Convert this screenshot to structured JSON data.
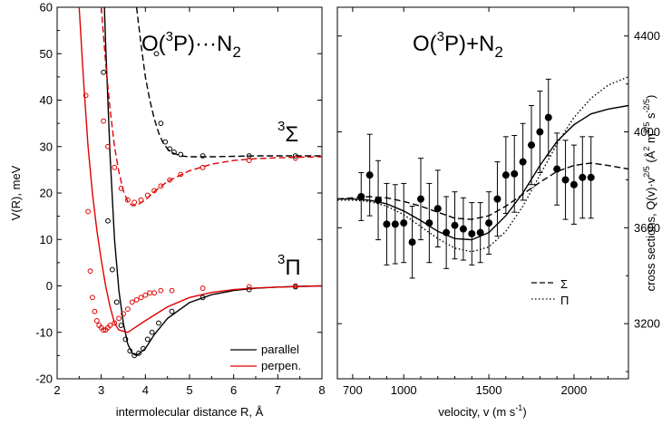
{
  "chart_data": [
    {
      "type": "line",
      "title": "O(3P)···N2",
      "title_parts": {
        "base": "O(",
        "sup": "3",
        "mid": "P)···N",
        "sub": "2"
      },
      "xlabel": "intermolecular distance R, Å",
      "ylabel": "V(R), meV",
      "xlim": [
        2,
        8
      ],
      "ylim": [
        -20,
        60
      ],
      "xticks": [
        "2",
        "3",
        "4",
        "5",
        "6",
        "7",
        "8"
      ],
      "yticks": [
        "-20",
        "-10",
        "0",
        "10",
        "20",
        "30",
        "40",
        "50",
        "60"
      ],
      "state_labels": [
        {
          "sup": "3",
          "symbol": "Σ"
        },
        {
          "sup": "3",
          "symbol": "Π"
        }
      ],
      "legend": {
        "position": "bottom-right",
        "entries": [
          "parallel",
          "perpen."
        ]
      },
      "colors": {
        "parallel": "#000000",
        "perpen": "#e00000"
      },
      "series": [
        {
          "name": "parallel",
          "state": "3Π",
          "style": "solid",
          "color": "#000000",
          "x": [
            3.0,
            3.1,
            3.2,
            3.3,
            3.4,
            3.5,
            3.6,
            3.7,
            3.8,
            4.0,
            4.2,
            4.5,
            5.0,
            5.5,
            6.0,
            6.5,
            7.0,
            7.5,
            8.0
          ],
          "y": [
            80,
            52,
            28,
            10,
            -1,
            -8,
            -12.5,
            -14.5,
            -15,
            -13.5,
            -10.5,
            -7,
            -3.6,
            -1.9,
            -1.0,
            -0.5,
            -0.25,
            -0.1,
            0
          ]
        },
        {
          "name": "perpen.",
          "state": "3Π",
          "style": "solid",
          "color": "#e00000",
          "x": [
            2.5,
            2.6,
            2.7,
            2.8,
            2.9,
            3.0,
            3.1,
            3.2,
            3.3,
            3.4,
            3.6,
            4.0,
            4.5,
            5.0,
            5.5,
            6.0,
            6.5,
            7.0,
            8.0
          ],
          "y": [
            60,
            44,
            30,
            20,
            12,
            5.5,
            0,
            -4.5,
            -8,
            -9.5,
            -10,
            -7.5,
            -4.5,
            -2.5,
            -1.4,
            -0.8,
            -0.45,
            -0.25,
            0
          ]
        },
        {
          "name": "parallel",
          "state": "3Σ",
          "style": "dashed",
          "color": "#000000",
          "x": [
            3.8,
            3.9,
            4.0,
            4.1,
            4.2,
            4.3,
            4.4,
            4.5,
            4.6,
            4.8,
            5.0,
            5.5,
            6.0,
            6.5,
            7.0,
            7.5,
            8.0
          ],
          "y": [
            60,
            52,
            45,
            40,
            36,
            33,
            30.8,
            29.5,
            28.7,
            28,
            27.8,
            27.8,
            27.9,
            28,
            28,
            28,
            28
          ]
        },
        {
          "name": "perpen.",
          "state": "3Σ",
          "style": "dashed",
          "color": "#e00000",
          "x": [
            3.0,
            3.1,
            3.2,
            3.3,
            3.4,
            3.5,
            3.6,
            3.7,
            3.8,
            4.0,
            4.2,
            4.5,
            5.0,
            5.5,
            6.0,
            6.5,
            7.0,
            7.5,
            8.0
          ],
          "y": [
            60,
            48,
            38,
            30,
            24.5,
            20.5,
            18.2,
            17.3,
            17.3,
            18.5,
            20.3,
            22.5,
            24.8,
            26.2,
            27,
            27.4,
            27.6,
            27.7,
            27.8
          ]
        }
      ],
      "scatter": [
        {
          "name": "parallel 3Π points",
          "color": "#000000",
          "x": [
            3.05,
            3.15,
            3.25,
            3.35,
            3.45,
            3.55,
            3.65,
            3.75,
            3.85,
            3.95,
            4.05,
            4.15,
            4.3,
            4.6,
            5.3,
            6.35,
            7.4
          ],
          "y": [
            46,
            14,
            3.5,
            -3.5,
            -8.5,
            -11.5,
            -14,
            -15,
            -14.5,
            -13.5,
            -11.5,
            -10,
            -8,
            -5.5,
            -2.5,
            -0.8,
            -0.2
          ]
        },
        {
          "name": "perpen. 3Π points",
          "color": "#e00000",
          "x": [
            2.65,
            2.7,
            2.75,
            2.8,
            2.85,
            2.9,
            2.95,
            3.0,
            3.05,
            3.1,
            3.15,
            3.2,
            3.3,
            3.4,
            3.5,
            3.6,
            3.7,
            3.8,
            3.9,
            4.0,
            4.1,
            4.2,
            4.35,
            4.6,
            5.3,
            6.35,
            7.4
          ],
          "y": [
            41,
            16,
            3.2,
            -2.5,
            -5.5,
            -7.5,
            -8.5,
            -9,
            -9.5,
            -9.5,
            -9,
            -8.5,
            -8,
            -7,
            -6,
            -5,
            -3.5,
            -3,
            -2.5,
            -2,
            -1.5,
            -1.5,
            -1,
            -1,
            -0.5,
            -0.2,
            0
          ]
        },
        {
          "name": "parallel 3Σ points",
          "color": "#000000",
          "x": [
            4.25,
            4.35,
            4.45,
            4.55,
            4.65,
            4.8,
            5.3,
            6.35,
            7.4
          ],
          "y": [
            50,
            35,
            31,
            29.5,
            28.8,
            28.3,
            28,
            28,
            28
          ]
        },
        {
          "name": "perpen. 3Σ points",
          "color": "#e00000",
          "x": [
            3.05,
            3.15,
            3.3,
            3.45,
            3.6,
            3.75,
            3.9,
            4.05,
            4.2,
            4.35,
            4.55,
            4.8,
            5.3,
            6.35,
            7.4
          ],
          "y": [
            35.5,
            30,
            25.5,
            21,
            18.5,
            18,
            18.5,
            19.5,
            20.5,
            21.5,
            22.8,
            24,
            25.5,
            27,
            27.5
          ]
        }
      ]
    },
    {
      "type": "line",
      "title": "O(3P)+N2",
      "title_parts": {
        "base": "O(",
        "sup": "3",
        "mid": "P)+N",
        "sub": "2"
      },
      "xlabel": "velocity, v (m s-1)",
      "xlabel_parts": {
        "base": "velocity, v (m s",
        "sup": "-1",
        "end": ")"
      },
      "ylabel": "cross sections, Q(v)·v2/5 (Å2 m2/5 s-2/5)",
      "ylabel_parts": [
        "cross sections, Q(v)·v",
        "2/5",
        " (Å",
        "2",
        " m",
        "2/5",
        " s",
        "-2/5",
        ")"
      ],
      "xlim": [
        610,
        2320
      ],
      "ylim": [
        2970,
        4520
      ],
      "yaxis_side": "right",
      "xticks": [
        "700",
        "1000",
        "1500",
        "2000"
      ],
      "yticks": [
        "3200",
        "3600",
        "4000",
        "4400"
      ],
      "legend": {
        "position": "bottom-right",
        "entries": [
          "Σ",
          "Π"
        ]
      },
      "series": [
        {
          "name": "total",
          "style": "solid",
          "color": "#000000",
          "x": [
            610,
            700,
            800,
            900,
            1000,
            1100,
            1200,
            1300,
            1400,
            1500,
            1600,
            1700,
            1800,
            1900,
            2000,
            2100,
            2200,
            2320
          ],
          "y": [
            3720,
            3720,
            3715,
            3700,
            3670,
            3630,
            3585,
            3555,
            3550,
            3580,
            3650,
            3745,
            3860,
            3960,
            4030,
            4075,
            4095,
            4110
          ]
        },
        {
          "name": "Σ",
          "style": "dashed",
          "color": "#000000",
          "x": [
            610,
            700,
            800,
            900,
            1000,
            1100,
            1200,
            1300,
            1400,
            1500,
            1600,
            1700,
            1800,
            1900,
            2000,
            2100,
            2200,
            2320
          ],
          "y": [
            3720,
            3725,
            3730,
            3725,
            3710,
            3690,
            3665,
            3640,
            3635,
            3650,
            3690,
            3740,
            3790,
            3835,
            3860,
            3870,
            3860,
            3845
          ]
        },
        {
          "name": "Π",
          "style": "dotted",
          "color": "#000000",
          "x": [
            610,
            700,
            800,
            900,
            1000,
            1100,
            1200,
            1300,
            1400,
            1500,
            1600,
            1700,
            1800,
            1900,
            2000,
            2100,
            2200,
            2320
          ],
          "y": [
            3715,
            3715,
            3710,
            3690,
            3655,
            3605,
            3555,
            3515,
            3500,
            3520,
            3585,
            3690,
            3820,
            3950,
            4060,
            4140,
            4195,
            4230
          ]
        }
      ],
      "points": {
        "x": [
          750,
          800,
          850,
          900,
          950,
          1000,
          1050,
          1100,
          1150,
          1200,
          1250,
          1300,
          1350,
          1400,
          1450,
          1500,
          1550,
          1600,
          1650,
          1700,
          1750,
          1800,
          1850,
          1900,
          1950,
          2000,
          2050,
          2100
        ],
        "y": [
          3730,
          3820,
          3715,
          3615,
          3615,
          3620,
          3540,
          3720,
          3620,
          3680,
          3580,
          3610,
          3595,
          3575,
          3580,
          3620,
          3720,
          3820,
          3825,
          3875,
          3945,
          4000,
          4060,
          3845,
          3800,
          3780,
          3810,
          3810
        ],
        "err": [
          100,
          170,
          165,
          170,
          165,
          165,
          150,
          170,
          165,
          160,
          150,
          140,
          130,
          130,
          125,
          130,
          155,
          160,
          160,
          160,
          165,
          170,
          160,
          150,
          165,
          165,
          170,
          170
        ]
      }
    }
  ]
}
